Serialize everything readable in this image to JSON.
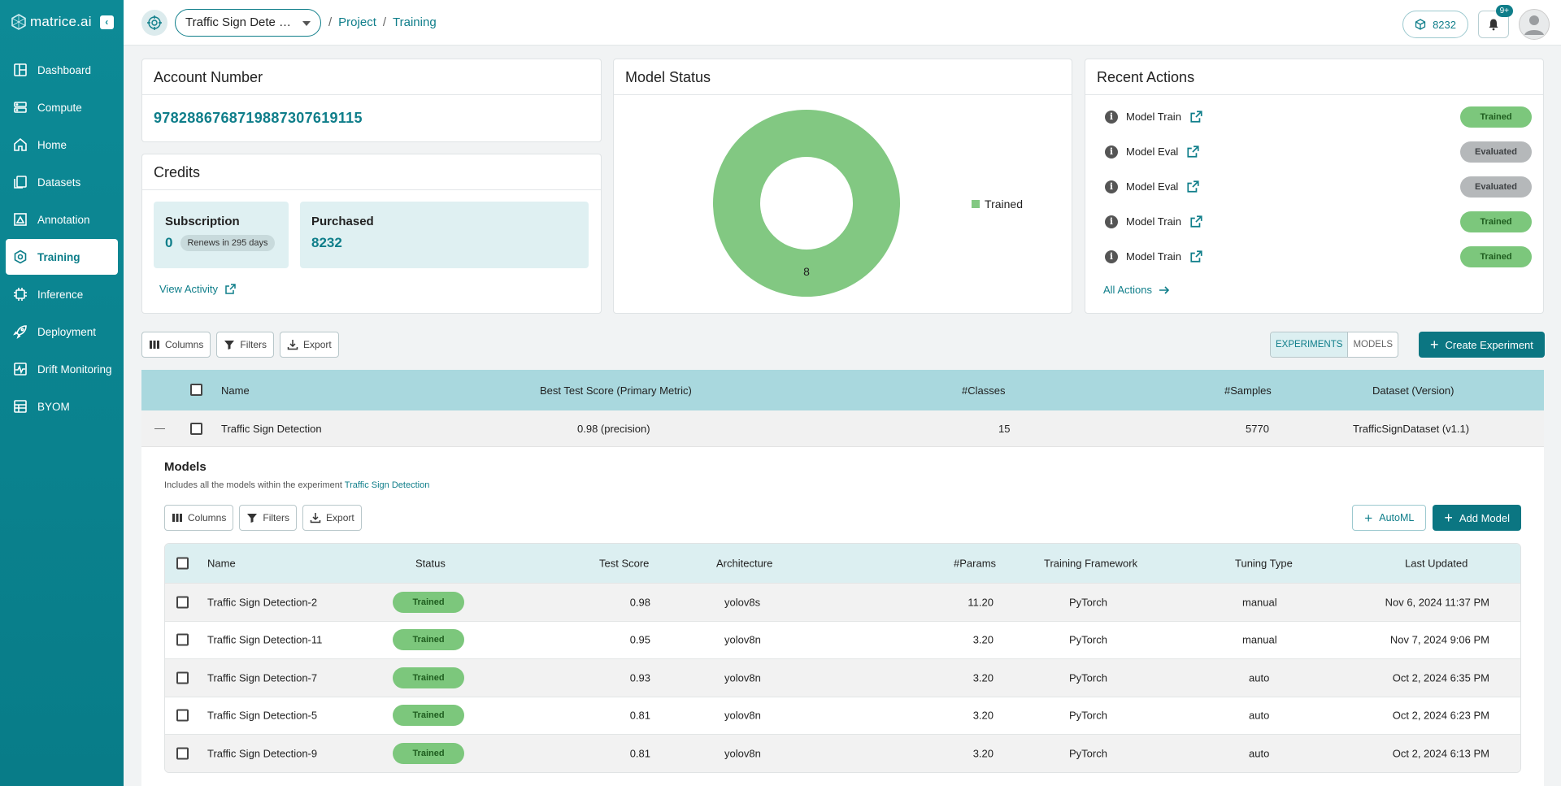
{
  "brand": {
    "name": "matrice.ai"
  },
  "sidebar": {
    "items": [
      {
        "label": "Dashboard",
        "icon": "dashboard-icon"
      },
      {
        "label": "Compute",
        "icon": "server-icon"
      },
      {
        "label": "Home",
        "icon": "home-icon"
      },
      {
        "label": "Datasets",
        "icon": "datasets-icon"
      },
      {
        "label": "Annotation",
        "icon": "annotation-icon"
      },
      {
        "label": "Training",
        "icon": "training-icon",
        "active": true
      },
      {
        "label": "Inference",
        "icon": "chip-icon"
      },
      {
        "label": "Deployment",
        "icon": "rocket-icon"
      },
      {
        "label": "Drift Monitoring",
        "icon": "monitor-icon"
      },
      {
        "label": "BYOM",
        "icon": "byom-icon"
      }
    ]
  },
  "topbar": {
    "project_select": "Traffic Sign Dete …",
    "breadcrumb": [
      "Project",
      "Training"
    ],
    "credits": "8232",
    "notifications_badge": "9+"
  },
  "account": {
    "title": "Account Number",
    "number": "97828867687198873076191​15"
  },
  "credits_card": {
    "title": "Credits",
    "subscription_label": "Subscription",
    "subscription_value": "0",
    "renew_text": "Renews in 295 days",
    "purchased_label": "Purchased",
    "purchased_value": "8232",
    "view_activity": "View Activity"
  },
  "model_status": {
    "title": "Model Status",
    "legend_label": "Trained",
    "center_value": "8"
  },
  "chart_data": {
    "type": "pie",
    "title": "Model Status",
    "categories": [
      "Trained"
    ],
    "values": [
      8
    ],
    "colors": [
      "#82c882"
    ],
    "legend": "right"
  },
  "recent_actions": {
    "title": "Recent Actions",
    "items": [
      {
        "name": "Model Train",
        "status": "Trained"
      },
      {
        "name": "Model Eval",
        "status": "Evaluated"
      },
      {
        "name": "Model Eval",
        "status": "Evaluated"
      },
      {
        "name": "Model Train",
        "status": "Trained"
      },
      {
        "name": "Model Train",
        "status": "Trained"
      }
    ],
    "all_actions": "All Actions"
  },
  "experiments_toolbar": {
    "columns": "Columns",
    "filters": "Filters",
    "export": "Export",
    "seg_experiments": "EXPERIMENTS",
    "seg_models": "MODELS",
    "create": "Create Experiment"
  },
  "experiments_table": {
    "headers": {
      "name": "Name",
      "best": "Best Test Score (Primary Metric)",
      "classes": "#Classes",
      "samples": "#Samples",
      "dataset": "Dataset (Version)"
    },
    "row": {
      "expand": "—",
      "name": "Traffic Sign Detection",
      "best": "0.98 (precision)",
      "classes": "15",
      "samples": "5770",
      "dataset": "TrafficSignDataset (v1.1)"
    }
  },
  "models_section": {
    "title": "Models",
    "subtitle": "Includes all the models within the experiment",
    "subtitle_link": "Traffic Sign Detection",
    "columns": "Columns",
    "filters": "Filters",
    "export": "Export",
    "automl": "AutoML",
    "add_model": "Add Model",
    "headers": {
      "name": "Name",
      "status": "Status",
      "score": "Test Score",
      "arch": "Architecture",
      "params": "#Params",
      "framework": "Training Framework",
      "tuning": "Tuning Type",
      "updated": "Last Updated"
    },
    "rows": [
      {
        "name": "Traffic Sign Detection-2",
        "status": "Trained",
        "score": "0.98",
        "arch": "yolov8s",
        "params": "11.20",
        "framework": "PyTorch",
        "tuning": "manual",
        "updated": "Nov 6, 2024 11:37 PM"
      },
      {
        "name": "Traffic Sign Detection-11",
        "status": "Trained",
        "score": "0.95",
        "arch": "yolov8n",
        "params": "3.20",
        "framework": "PyTorch",
        "tuning": "manual",
        "updated": "Nov 7, 2024 9:06 PM"
      },
      {
        "name": "Traffic Sign Detection-7",
        "status": "Trained",
        "score": "0.93",
        "arch": "yolov8n",
        "params": "3.20",
        "framework": "PyTorch",
        "tuning": "auto",
        "updated": "Oct 2, 2024 6:35 PM"
      },
      {
        "name": "Traffic Sign Detection-5",
        "status": "Trained",
        "score": "0.81",
        "arch": "yolov8n",
        "params": "3.20",
        "framework": "PyTorch",
        "tuning": "auto",
        "updated": "Oct 2, 2024 6:23 PM"
      },
      {
        "name": "Traffic Sign Detection-9",
        "status": "Trained",
        "score": "0.81",
        "arch": "yolov8n",
        "params": "3.20",
        "framework": "PyTorch",
        "tuning": "auto",
        "updated": "Oct 2, 2024 6:13 PM"
      }
    ]
  }
}
